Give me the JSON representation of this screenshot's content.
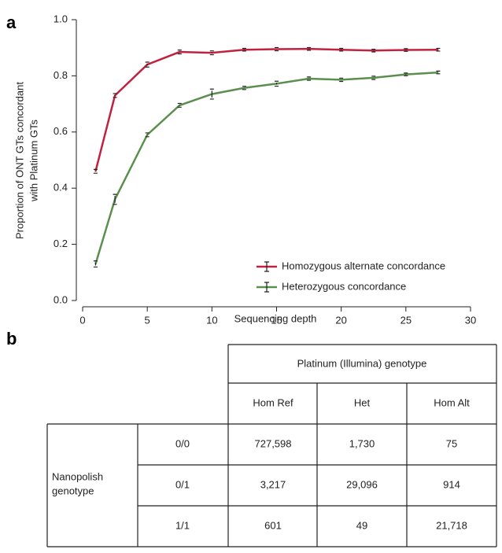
{
  "panel_labels": [
    "a",
    "b"
  ],
  "chart_data": {
    "type": "line",
    "x_label": "Sequencing depth",
    "y_label": [
      "Proportion of ONT GTs concordant",
      "with Platinum GTs"
    ],
    "x": [
      1,
      2.5,
      5,
      7.5,
      10,
      12.5,
      15,
      17.5,
      20,
      22.5,
      25,
      27.5
    ],
    "series": [
      {
        "name": "Homozygous alternate concordance",
        "color": "#c0223f",
        "values": [
          0.46,
          0.73,
          0.84,
          0.885,
          0.882,
          0.893,
          0.895,
          0.896,
          0.893,
          0.89,
          0.892,
          0.893
        ],
        "errors": [
          0.004,
          0.004,
          0.006,
          0.004,
          0.004,
          0.002,
          0.003,
          0.002,
          0.002,
          0.002,
          0.002,
          0.002
        ]
      },
      {
        "name": "Heterozygous concordance",
        "color": "#5b8f4e",
        "values": [
          0.13,
          0.36,
          0.59,
          0.695,
          0.735,
          0.757,
          0.772,
          0.79,
          0.786,
          0.793,
          0.805,
          0.812
        ],
        "errors": [
          0.008,
          0.015,
          0.004,
          0.004,
          0.015,
          0.003,
          0.006,
          0.003,
          0.003,
          0.003,
          0.002,
          0.002
        ]
      }
    ],
    "xlim": [
      0,
      30
    ],
    "ylim": [
      0,
      1
    ],
    "xticks": [
      0,
      5,
      10,
      15,
      20,
      25,
      30
    ],
    "yticks": [
      {
        "value": 0,
        "label": "0.0"
      },
      {
        "value": 0.2,
        "label": "0.2"
      },
      {
        "value": 0.4,
        "label": "0.4"
      },
      {
        "value": 0.6,
        "label": "0.6"
      },
      {
        "value": 0.8,
        "label": "0.8"
      },
      {
        "value": 1,
        "label": "1.0"
      }
    ],
    "legend": "lower right"
  },
  "table": {
    "header": "Platinum (Illumina) genotype",
    "columns": [
      "Hom Ref",
      "Het",
      "Hom Alt"
    ],
    "row_group": [
      "Nanopolish",
      "genotype"
    ],
    "rows": [
      [
        "0/0",
        "727,598",
        "1,730",
        "75"
      ],
      [
        "0/1",
        "3,217",
        "29,096",
        "914"
      ],
      [
        "1/1",
        "601",
        "49",
        "21,718"
      ]
    ]
  }
}
